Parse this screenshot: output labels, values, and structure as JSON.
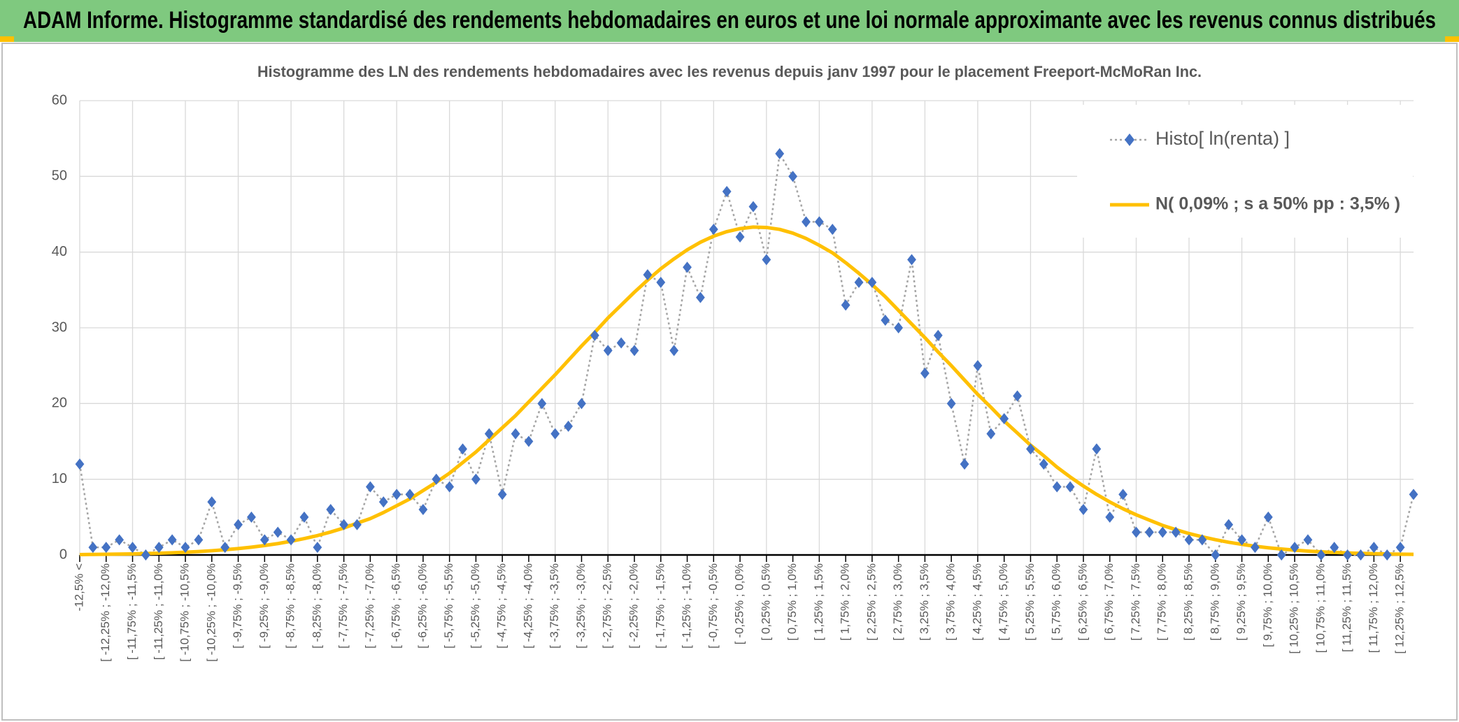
{
  "header": {
    "title": "ADAM Informe. Histogramme standardisé des rendements hebdomadaires en euros et une loi normale approximante avec les revenus connus distribués"
  },
  "chart_data": {
    "type": "line",
    "title": "Histogramme des LN des rendements hebdomadaires avec les revenus depuis janv 1997 pour le placement Freeport-McMoRan Inc.",
    "categories": [
      "-12,5% <",
      null,
      "[ -12,25% ; -12,0%",
      null,
      "[ -11,75% ; -11,5%",
      null,
      "[ -11,25% ; -11,0%",
      null,
      "[ -10,75% ; -10,5%",
      null,
      "[ -10,25% ; -10,0%",
      null,
      "[ -9,75% ; -9,5%",
      null,
      "[ -9,25% ; -9,0%",
      null,
      "[ -8,75% ; -8,5%",
      null,
      "[ -8,25% ; -8,0%",
      null,
      "[ -7,75% ; -7,5%",
      null,
      "[ -7,25% ; -7,0%",
      null,
      "[ -6,75% ; -6,5%",
      null,
      "[ -6,25% ; -6,0%",
      null,
      "[ -5,75% ; -5,5%",
      null,
      "[ -5,25% ; -5,0%",
      null,
      "[ -4,75% ; -4,5%",
      null,
      "[ -4,25% ; -4,0%",
      null,
      "[ -3,75% ; -3,5%",
      null,
      "[ -3,25% ; -3,0%",
      null,
      "[ -2,75% ; -2,5%",
      null,
      "[ -2,25% ; -2,0%",
      null,
      "[ -1,75% ; -1,5%",
      null,
      "[ -1,25% ; -1,0%",
      null,
      "[ -0,75% ; -0,5%",
      null,
      "[ -0,25% ; 0,0%",
      null,
      "[ 0,25% ; 0,5%",
      null,
      "[ 0,75% ; 1,0%",
      null,
      "[ 1,25% ; 1,5%",
      null,
      "[ 1,75% ; 2,0%",
      null,
      "[ 2,25% ; 2,5%",
      null,
      "[ 2,75% ; 3,0%",
      null,
      "[ 3,25% ; 3,5%",
      null,
      "[ 3,75% ; 4,0%",
      null,
      "[ 4,25% ; 4,5%",
      null,
      "[ 4,75% ; 5,0%",
      null,
      "[ 5,25% ; 5,5%",
      null,
      "[ 5,75% ; 6,0%",
      null,
      "[ 6,25% ; 6,5%",
      null,
      "[ 6,75% ; 7,0%",
      null,
      "[ 7,25% ; 7,5%",
      null,
      "[ 7,75% ; 8,0%",
      null,
      "[ 8,25% ; 8,5%",
      null,
      "[ 8,75% ; 9,0%",
      null,
      "[ 9,25% ; 9,5%",
      null,
      "[ 9,75% ; 10,0%",
      null,
      "[ 10,25% ; 10,5%",
      null,
      "[ 10,75% ; 11,0%",
      null,
      "[ 11,25% ; 11,5%",
      null,
      "[ 11,75% ; 12,0%",
      null,
      "[ 12,25% ; 12,5%",
      null
    ],
    "series": [
      {
        "name": "Histo[ ln(renta) ]",
        "color": "#4472c4",
        "line_color": "#a5a5a5",
        "values": [
          12,
          1,
          1,
          2,
          1,
          0,
          1,
          2,
          1,
          2,
          7,
          1,
          4,
          5,
          2,
          3,
          2,
          5,
          1,
          6,
          4,
          4,
          9,
          7,
          8,
          8,
          6,
          10,
          9,
          14,
          10,
          16,
          8,
          16,
          15,
          20,
          16,
          17,
          20,
          29,
          27,
          28,
          27,
          37,
          36,
          27,
          38,
          34,
          43,
          48,
          42,
          46,
          39,
          53,
          50,
          44,
          44,
          43,
          33,
          36,
          36,
          31,
          30,
          39,
          24,
          29,
          20,
          12,
          25,
          16,
          18,
          21,
          14,
          12,
          9,
          9,
          6,
          14,
          5,
          8,
          3,
          3,
          3,
          3,
          2,
          2,
          0,
          4,
          2,
          1,
          5,
          0,
          1,
          2,
          0,
          1,
          0,
          0,
          1,
          0,
          1,
          8
        ]
      },
      {
        "name": "N( 0,09% ; s a 50% pp : 3,5% )",
        "color": "#ffc000",
        "values": [
          0.05,
          0.07,
          0.09,
          0.11,
          0.14,
          0.18,
          0.23,
          0.29,
          0.36,
          0.45,
          0.56,
          0.69,
          0.84,
          1.03,
          1.25,
          1.5,
          1.81,
          2.16,
          2.56,
          3.03,
          3.56,
          4.2,
          4.8,
          5.6,
          6.5,
          7.4,
          8.5,
          9.6,
          10.8,
          12.2,
          13.6,
          15.2,
          16.8,
          18.4,
          20.2,
          22,
          23.8,
          25.7,
          27.6,
          29.4,
          31.3,
          33,
          34.7,
          36.3,
          37.8,
          39.1,
          40.3,
          41.3,
          42.1,
          42.7,
          43.1,
          43.3,
          43.25,
          43,
          42.5,
          41.8,
          40.9,
          39.9,
          38.6,
          37.2,
          35.7,
          34.1,
          32.3,
          30.5,
          28.7,
          26.8,
          25,
          23.1,
          21.2,
          19.5,
          17.7,
          16.1,
          14.5,
          13.1,
          11.6,
          10.3,
          9.1,
          8,
          7,
          6.1,
          5.3,
          4.6,
          3.9,
          3.34,
          2.83,
          2.39,
          2.01,
          1.68,
          1.4,
          1.15,
          0.95,
          0.78,
          0.63,
          0.51,
          0.41,
          0.33,
          0.26,
          0.21,
          0.17,
          0.13,
          0.1,
          0.08
        ]
      }
    ],
    "ylim": [
      0,
      60
    ],
    "yticks": [
      0,
      10,
      20,
      30,
      40,
      50,
      60
    ],
    "grid": true,
    "legend": "top-right"
  }
}
